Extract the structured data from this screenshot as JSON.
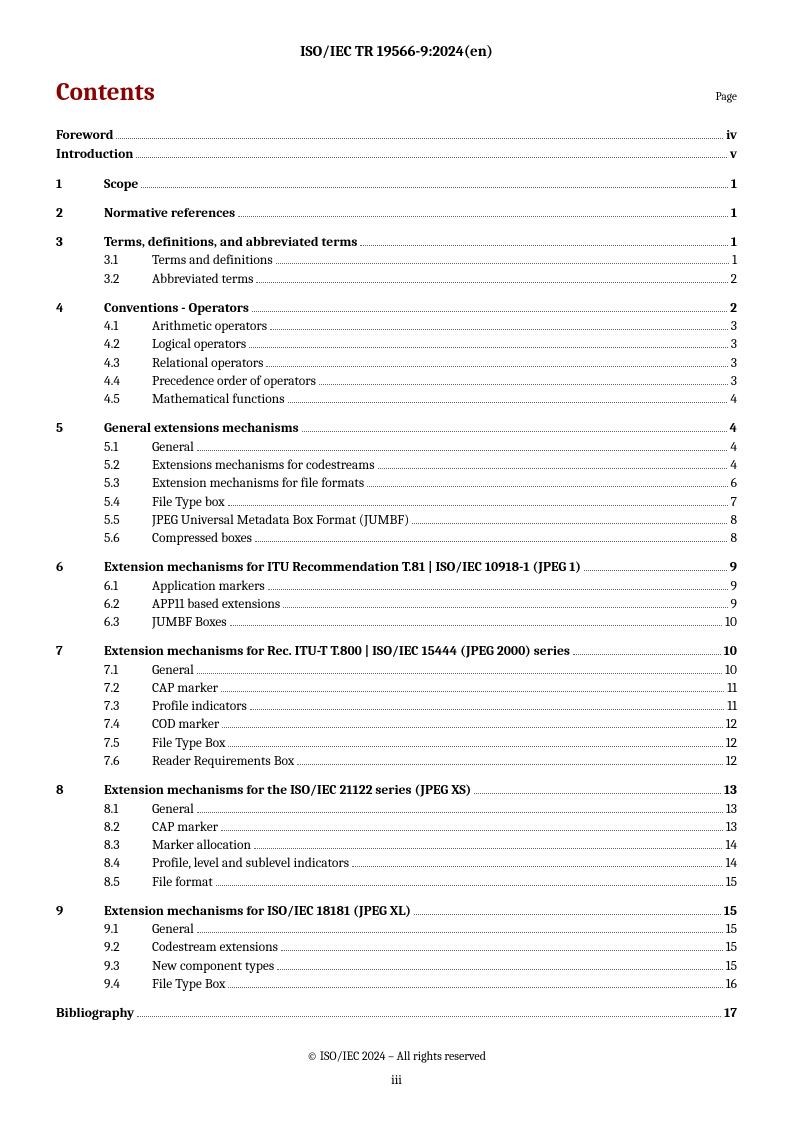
{
  "doc_id": "ISO/IEC TR 19566-9:2024(en)",
  "heading": "Contents",
  "page_label": "Page",
  "footer_copy": "© ISO/IEC 2024 – All rights reserved",
  "footer_roman": "iii",
  "colors": {
    "title": "#8b0000",
    "text": "#000000",
    "leader": "#666666",
    "background": "#ffffff"
  },
  "typography": {
    "family": "Cambria / serif",
    "title_fontsize_pt": 19,
    "body_fontsize_pt": 10,
    "docid_fontsize_pt": 11
  },
  "toc": [
    {
      "type": "front",
      "title": "Foreword",
      "page": "iv"
    },
    {
      "type": "front",
      "title": "Introduction",
      "page": "v"
    },
    {
      "type": "section",
      "num": "1",
      "title": "Scope",
      "page": "1",
      "subs": []
    },
    {
      "type": "section",
      "num": "2",
      "title": "Normative references",
      "page": "1",
      "subs": []
    },
    {
      "type": "section",
      "num": "3",
      "title": "Terms, definitions, and abbreviated terms",
      "page": "1",
      "subs": [
        {
          "num": "3.1",
          "title": "Terms and definitions",
          "page": "1"
        },
        {
          "num": "3.2",
          "title": "Abbreviated terms",
          "page": "2"
        }
      ]
    },
    {
      "type": "section",
      "num": "4",
      "title": "Conventions - Operators",
      "page": "2",
      "subs": [
        {
          "num": "4.1",
          "title": "Arithmetic operators",
          "page": "3"
        },
        {
          "num": "4.2",
          "title": "Logical operators",
          "page": "3"
        },
        {
          "num": "4.3",
          "title": "Relational operators",
          "page": "3"
        },
        {
          "num": "4.4",
          "title": "Precedence order of operators",
          "page": "3"
        },
        {
          "num": "4.5",
          "title": "Mathematical functions",
          "page": "4"
        }
      ]
    },
    {
      "type": "section",
      "num": "5",
      "title": "General extensions mechanisms",
      "page": "4",
      "subs": [
        {
          "num": "5.1",
          "title": "General",
          "page": "4"
        },
        {
          "num": "5.2",
          "title": "Extensions mechanisms for codestreams",
          "page": "4"
        },
        {
          "num": "5.3",
          "title": "Extension mechanisms for file formats",
          "page": "6"
        },
        {
          "num": "5.4",
          "title": "File Type box",
          "page": "7"
        },
        {
          "num": "5.5",
          "title": "JPEG Universal Metadata Box Format (JUMBF)",
          "page": "8"
        },
        {
          "num": "5.6",
          "title": "Compressed boxes",
          "page": "8"
        }
      ]
    },
    {
      "type": "section",
      "num": "6",
      "title": "Extension mechanisms for ITU Recommendation T.81 | ISO/IEC 10918-1 (JPEG 1)",
      "page": "9",
      "subs": [
        {
          "num": "6.1",
          "title": "Application markers",
          "page": "9"
        },
        {
          "num": "6.2",
          "title": "APP11 based extensions",
          "page": "9"
        },
        {
          "num": "6.3",
          "title": "JUMBF Boxes",
          "page": "10"
        }
      ]
    },
    {
      "type": "section",
      "num": "7",
      "title": "Extension mechanisms for Rec. ITU-T T.800 | ISO/IEC 15444 (JPEG 2000) series",
      "page": "10",
      "subs": [
        {
          "num": "7.1",
          "title": "General",
          "page": "10"
        },
        {
          "num": "7.2",
          "title": "CAP marker",
          "page": "11"
        },
        {
          "num": "7.3",
          "title": "Profile indicators",
          "page": "11"
        },
        {
          "num": "7.4",
          "title": "COD marker",
          "page": "12"
        },
        {
          "num": "7.5",
          "title": "File Type Box",
          "page": "12"
        },
        {
          "num": "7.6",
          "title": "Reader Requirements Box",
          "page": "12"
        }
      ]
    },
    {
      "type": "section",
      "num": "8",
      "title": "Extension mechanisms for the ISO/IEC 21122 series (JPEG XS)",
      "page": "13",
      "subs": [
        {
          "num": "8.1",
          "title": "General",
          "page": "13"
        },
        {
          "num": "8.2",
          "title": "CAP marker",
          "page": "13"
        },
        {
          "num": "8.3",
          "title": "Marker allocation",
          "page": "14"
        },
        {
          "num": "8.4",
          "title": "Profile, level and sublevel indicators",
          "page": "14"
        },
        {
          "num": "8.5",
          "title": "File format",
          "page": "15"
        }
      ]
    },
    {
      "type": "section",
      "num": "9",
      "title": "Extension mechanisms for ISO/IEC 18181 (JPEG XL)",
      "page": "15",
      "subs": [
        {
          "num": "9.1",
          "title": "General",
          "page": "15"
        },
        {
          "num": "9.2",
          "title": "Codestream extensions",
          "page": "15"
        },
        {
          "num": "9.3",
          "title": "New component types",
          "page": "15"
        },
        {
          "num": "9.4",
          "title": "File Type Box",
          "page": "16"
        }
      ]
    },
    {
      "type": "front",
      "title": "Bibliography",
      "page": "17"
    }
  ]
}
